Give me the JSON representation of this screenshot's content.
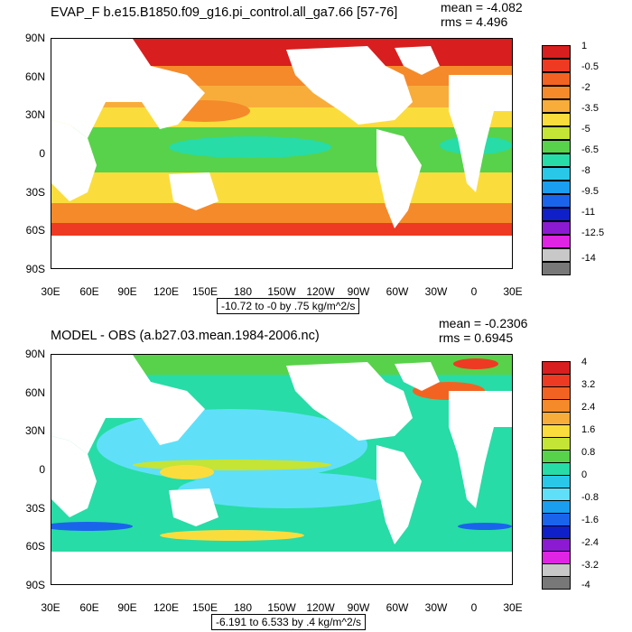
{
  "top": {
    "title": "EVAP_F b.e15.B1850.f09_g16.pi_control.all_ga7.66 [57-76]",
    "mean": "mean = -4.082",
    "rms": "rms = 4.496",
    "range": "-10.72 to -0 by .75 kg/m^2/s",
    "colorbar_labels": [
      "1",
      "-0.5",
      "-2",
      "-3.5",
      "-5",
      "-6.5",
      "-8",
      "-9.5",
      "-11",
      "-12.5",
      "-14"
    ],
    "colors": [
      "#d81e1e",
      "#ee3a22",
      "#f26322",
      "#f58a2a",
      "#f8ad3a",
      "#fadd3c",
      "#c4e436",
      "#58d24a",
      "#27dca6",
      "#2ac8e8",
      "#1a9ef0",
      "#1a64ec",
      "#1020c8",
      "#8c1ad2",
      "#e024e4",
      "#c8c8c8",
      "#787878"
    ]
  },
  "bottom": {
    "title": "MODEL - OBS (a.b27.03.mean.1984-2006.nc)",
    "mean": "mean = -0.2306",
    "rms": "rms = 0.6945",
    "range": "-6.191 to 6.533 by .4 kg/m^2/s",
    "colorbar_labels": [
      "4",
      "3.2",
      "2.4",
      "1.6",
      "0.8",
      "0",
      "-0.8",
      "-1.6",
      "-2.4",
      "-3.2",
      "-4"
    ],
    "colors": [
      "#d81e1e",
      "#ee3a22",
      "#f26322",
      "#f58a2a",
      "#f8ad3a",
      "#fadd3c",
      "#c4e436",
      "#58d24a",
      "#27dca6",
      "#2ac8e8",
      "#5fe0f8",
      "#1a9ef0",
      "#1a64ec",
      "#1020c8",
      "#8c1ad2",
      "#e024e4",
      "#c8c8c8",
      "#787878"
    ]
  },
  "axes": {
    "lat_labels": [
      "90N",
      "60N",
      "30N",
      "0",
      "30S",
      "60S",
      "90S"
    ],
    "lon_labels": [
      "30E",
      "60E",
      "90E",
      "120E",
      "150E",
      "180",
      "150W",
      "120W",
      "90W",
      "60W",
      "30W",
      "0",
      "30E"
    ]
  }
}
